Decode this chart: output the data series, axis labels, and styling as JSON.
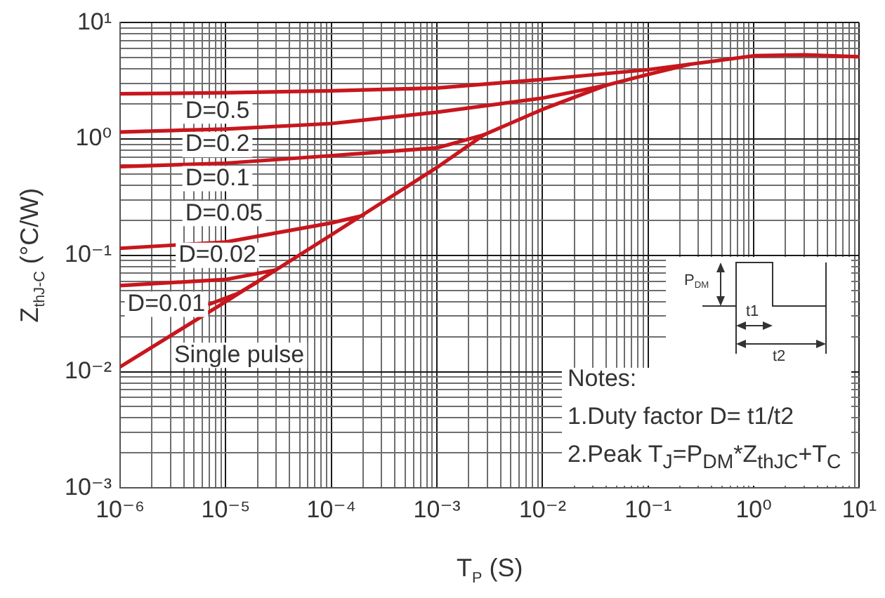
{
  "chart_data": {
    "type": "line",
    "xlabel": "T$_{P}$ (S)",
    "ylabel": "Z$_{thJ-C}$ (°C/W)",
    "series": [
      {
        "name": "D=0.5",
        "color": "#c8161d",
        "x": [
          1e-06,
          1e-05,
          0.0001,
          0.001,
          0.01,
          0.1,
          0.25
        ],
        "values": [
          2.45,
          2.5,
          2.6,
          2.75,
          3.25,
          3.95,
          4.4
        ]
      },
      {
        "name": "D=0.2",
        "color": "#c8161d",
        "x": [
          1e-06,
          1e-05,
          0.0001,
          0.001,
          0.01,
          0.04
        ],
        "values": [
          1.15,
          1.22,
          1.36,
          1.7,
          2.25,
          2.9
        ]
      },
      {
        "name": "D=0.1",
        "color": "#c8161d",
        "x": [
          1e-06,
          1e-05,
          0.0001,
          0.001,
          0.0028
        ],
        "values": [
          0.58,
          0.62,
          0.72,
          0.84,
          1.09
        ]
      },
      {
        "name": "D=0.05",
        "color": "#c8161d",
        "x": [
          1e-06,
          1e-05,
          0.0001,
          0.0002
        ],
        "values": [
          0.115,
          0.13,
          0.19,
          0.22
        ]
      },
      {
        "name": "D=0.02",
        "color": "#c8161d",
        "x": [
          1e-06,
          1e-05,
          3e-05
        ],
        "values": [
          0.055,
          0.062,
          0.075
        ]
      },
      {
        "name": "D=0.01",
        "color": "#c8161d",
        "x": [
          7e-06,
          1.3e-05,
          2e-05
        ],
        "values": [
          0.038,
          0.047,
          0.059
        ]
      },
      {
        "name": "Single pulse",
        "color": "#c8161d",
        "x": [
          1e-06,
          1e-05,
          0.0001,
          0.001,
          0.0028,
          0.01,
          0.04,
          0.1,
          0.25,
          1,
          3,
          10
        ],
        "values": [
          0.011,
          0.04,
          0.15,
          0.57,
          1.09,
          1.8,
          2.9,
          3.6,
          4.4,
          5.2,
          5.3,
          5.1
        ]
      }
    ],
    "xlim": [
      1e-06,
      10
    ],
    "ylim": [
      0.001,
      10
    ],
    "xticks": [
      {
        "value": 1e-06,
        "label": "10⁻⁶"
      },
      {
        "value": 2e-06,
        "label": null
      },
      {
        "value": 3e-06,
        "label": null
      },
      {
        "value": 4e-06,
        "label": null
      },
      {
        "value": 5e-06,
        "label": null
      },
      {
        "value": 6e-06,
        "label": null
      },
      {
        "value": 7e-06,
        "label": null
      },
      {
        "value": 8e-06,
        "label": null
      },
      {
        "value": 9e-06,
        "label": null
      },
      {
        "value": 1e-05,
        "label": "10⁻⁵"
      },
      {
        "value": 2e-05,
        "label": null
      },
      {
        "value": 3e-05,
        "label": null
      },
      {
        "value": 4e-05,
        "label": null
      },
      {
        "value": 5e-05,
        "label": null
      },
      {
        "value": 6e-05,
        "label": null
      },
      {
        "value": 7e-05,
        "label": null
      },
      {
        "value": 8e-05,
        "label": null
      },
      {
        "value": 9e-05,
        "label": null
      },
      {
        "value": 0.0001,
        "label": "10⁻⁴"
      },
      {
        "value": 0.0002,
        "label": null
      },
      {
        "value": 0.0003,
        "label": null
      },
      {
        "value": 0.0004,
        "label": null
      },
      {
        "value": 0.0005,
        "label": null
      },
      {
        "value": 0.0006,
        "label": null
      },
      {
        "value": 0.0007,
        "label": null
      },
      {
        "value": 0.0008,
        "label": null
      },
      {
        "value": 0.0009,
        "label": null
      },
      {
        "value": 0.001,
        "label": "10⁻³"
      },
      {
        "value": 0.002,
        "label": null
      },
      {
        "value": 0.003,
        "label": null
      },
      {
        "value": 0.004,
        "label": null
      },
      {
        "value": 0.005,
        "label": null
      },
      {
        "value": 0.006,
        "label": null
      },
      {
        "value": 0.007,
        "label": null
      },
      {
        "value": 0.008,
        "label": null
      },
      {
        "value": 0.009,
        "label": null
      },
      {
        "value": 0.01,
        "label": "10⁻²"
      },
      {
        "value": 0.02,
        "label": null
      },
      {
        "value": 0.03,
        "label": null
      },
      {
        "value": 0.04,
        "label": null
      },
      {
        "value": 0.05,
        "label": null
      },
      {
        "value": 0.06,
        "label": null
      },
      {
        "value": 0.07,
        "label": null
      },
      {
        "value": 0.08,
        "label": null
      },
      {
        "value": 0.09,
        "label": null
      },
      {
        "value": 0.1,
        "label": "10⁻¹"
      },
      {
        "value": 0.2,
        "label": null
      },
      {
        "value": 0.3,
        "label": null
      },
      {
        "value": 0.4,
        "label": null
      },
      {
        "value": 0.5,
        "label": null
      },
      {
        "value": 0.6,
        "label": null
      },
      {
        "value": 0.7,
        "label": null
      },
      {
        "value": 0.8,
        "label": null
      },
      {
        "value": 0.9,
        "label": null
      },
      {
        "value": 1,
        "label": "10⁰"
      },
      {
        "value": 2,
        "label": null
      },
      {
        "value": 3,
        "label": null
      },
      {
        "value": 4,
        "label": null
      },
      {
        "value": 5,
        "label": null
      },
      {
        "value": 6,
        "label": null
      },
      {
        "value": 7,
        "label": null
      },
      {
        "value": 8,
        "label": null
      },
      {
        "value": 9,
        "label": null
      },
      {
        "value": 10,
        "label": "10¹"
      }
    ],
    "yticks": [
      {
        "value": 0.001,
        "label": "10⁻³"
      },
      {
        "value": 0.002,
        "label": null
      },
      {
        "value": 0.003,
        "label": null
      },
      {
        "value": 0.004,
        "label": null
      },
      {
        "value": 0.005,
        "label": null
      },
      {
        "value": 0.006,
        "label": null
      },
      {
        "value": 0.007,
        "label": null
      },
      {
        "value": 0.008,
        "label": null
      },
      {
        "value": 0.009,
        "label": null
      },
      {
        "value": 0.01,
        "label": "10⁻²"
      },
      {
        "value": 0.02,
        "label": null
      },
      {
        "value": 0.03,
        "label": null
      },
      {
        "value": 0.04,
        "label": null
      },
      {
        "value": 0.05,
        "label": null
      },
      {
        "value": 0.06,
        "label": null
      },
      {
        "value": 0.07,
        "label": null
      },
      {
        "value": 0.08,
        "label": null
      },
      {
        "value": 0.09,
        "label": null
      },
      {
        "value": 0.1,
        "label": "10⁻¹"
      },
      {
        "value": 0.2,
        "label": null
      },
      {
        "value": 0.3,
        "label": null
      },
      {
        "value": 0.4,
        "label": null
      },
      {
        "value": 0.5,
        "label": null
      },
      {
        "value": 0.6,
        "label": null
      },
      {
        "value": 0.7,
        "label": null
      },
      {
        "value": 0.8,
        "label": null
      },
      {
        "value": 0.9,
        "label": null
      },
      {
        "value": 1,
        "label": "10⁰"
      },
      {
        "value": 2,
        "label": null
      },
      {
        "value": 3,
        "label": null
      },
      {
        "value": 4,
        "label": null
      },
      {
        "value": 5,
        "label": null
      },
      {
        "value": 6,
        "label": null
      },
      {
        "value": 7,
        "label": null
      },
      {
        "value": 8,
        "label": null
      },
      {
        "value": 9,
        "label": null
      },
      {
        "value": 10,
        "label": "10¹"
      }
    ],
    "log": "xy",
    "grid": true,
    "legend": false,
    "marker": "none",
    "line_style": "solid",
    "annotations": [
      "Notes:",
      "1.Duty factor D= t1/t2",
      "2.Peak T$_{J}$=P$_{DM}$*Z$_{thJC}$+T$_{C}$",
      "P$_{DM}$",
      "t1",
      "t2"
    ]
  }
}
